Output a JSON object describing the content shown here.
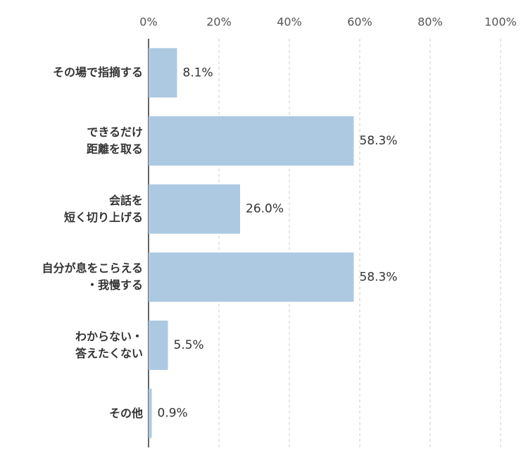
{
  "chart_data": {
    "type": "bar",
    "orientation": "horizontal",
    "categories": [
      "その場で指摘する",
      "できるだけ\n距離を取る",
      "会話を\n短く切り上げる",
      "自分が息をこらえる\n・我慢する",
      "わからない・\n答えたくない",
      "その他"
    ],
    "values": [
      8.1,
      58.3,
      26.0,
      58.3,
      5.5,
      0.9
    ],
    "value_labels": [
      "8.1%",
      "58.3%",
      "26.0%",
      "58.3%",
      "5.5%",
      "0.9%"
    ],
    "color": "#adc9e2",
    "xlim": [
      0,
      100
    ],
    "xticks": [
      {
        "value": 0,
        "label": "0%"
      },
      {
        "value": 20,
        "label": "20%"
      },
      {
        "value": 40,
        "label": "40%"
      },
      {
        "value": 60,
        "label": "60%"
      },
      {
        "value": 80,
        "label": "80%"
      },
      {
        "value": 100,
        "label": "100%"
      }
    ],
    "grid": true
  }
}
